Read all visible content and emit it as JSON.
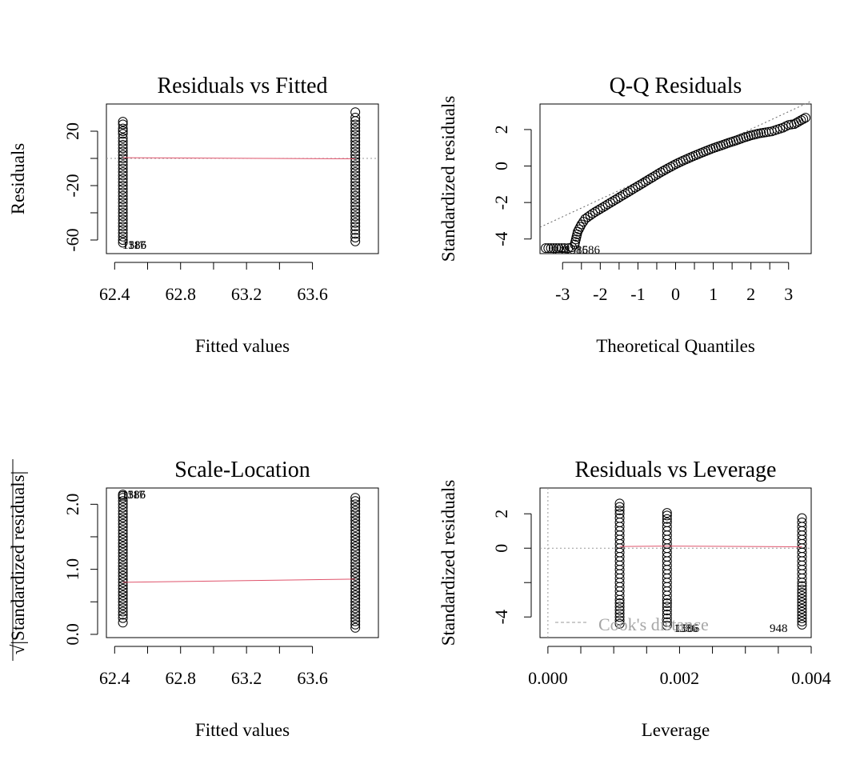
{
  "chart_data": [
    {
      "type": "scatter",
      "title": "Residuals vs Fitted",
      "xlabel": "Fitted values",
      "ylabel": "Residuals",
      "xlim": [
        62.35,
        64.0
      ],
      "ylim": [
        -70,
        40
      ],
      "xticks": [
        "62.4",
        "62.8",
        "63.2",
        "63.6"
      ],
      "xtick_values": [
        62.4,
        62.8,
        63.2,
        63.6
      ],
      "yticks": [
        "-60",
        "-20",
        "20"
      ],
      "ytick_values": [
        -60,
        -20,
        20
      ],
      "y_minor_ticks": [
        -40,
        0
      ],
      "groups": [
        {
          "x": 62.45,
          "y_values": [
            -62,
            -60,
            -45,
            -40,
            -35,
            -30,
            -25,
            -20,
            -15,
            -10,
            -5,
            0,
            5,
            10,
            15,
            18,
            20,
            22,
            25,
            27
          ]
        },
        {
          "x": 63.86,
          "y_values": [
            -61,
            -50,
            -40,
            -35,
            -30,
            -25,
            -20,
            -15,
            -10,
            -5,
            0,
            5,
            10,
            15,
            20,
            25,
            30,
            34
          ]
        }
      ],
      "smoother": [
        {
          "x": 62.45,
          "y": 0.5
        },
        {
          "x": 63.86,
          "y": -0.3
        }
      ],
      "reference_line_y": 0,
      "point_labels": [
        "1386",
        "1117",
        "1586"
      ]
    },
    {
      "type": "scatter",
      "title": "Q-Q Residuals",
      "xlabel": "Theoretical Quantiles",
      "ylabel": "Standardized residuals",
      "xlim": [
        -3.6,
        3.6
      ],
      "ylim": [
        -4.8,
        3.4
      ],
      "xticks": [
        "-3",
        "-2",
        "-1",
        "0",
        "1",
        "2",
        "3"
      ],
      "xtick_values": [
        -3,
        -2,
        -1,
        0,
        1,
        2,
        3
      ],
      "yticks": [
        "-4",
        "-2",
        "0",
        "2"
      ],
      "ytick_values": [
        -4,
        -2,
        0,
        2
      ],
      "points": [
        [
          -3.45,
          -4.5
        ],
        [
          -3.1,
          -4.5
        ],
        [
          -2.95,
          -4.5
        ],
        [
          -2.85,
          -4.5
        ],
        [
          -2.75,
          -4.45
        ],
        [
          -2.68,
          -4.3
        ],
        [
          -2.6,
          -3.6
        ],
        [
          -2.5,
          -3.2
        ],
        [
          -2.4,
          -2.9
        ],
        [
          -2.2,
          -2.6
        ],
        [
          -2.0,
          -2.35
        ],
        [
          -1.8,
          -2.1
        ],
        [
          -1.6,
          -1.85
        ],
        [
          -1.4,
          -1.6
        ],
        [
          -1.2,
          -1.35
        ],
        [
          -1.0,
          -1.1
        ],
        [
          -0.8,
          -0.85
        ],
        [
          -0.6,
          -0.6
        ],
        [
          -0.4,
          -0.35
        ],
        [
          -0.2,
          -0.12
        ],
        [
          0.0,
          0.1
        ],
        [
          0.2,
          0.3
        ],
        [
          0.4,
          0.48
        ],
        [
          0.6,
          0.65
        ],
        [
          0.8,
          0.82
        ],
        [
          1.0,
          0.98
        ],
        [
          1.2,
          1.12
        ],
        [
          1.4,
          1.27
        ],
        [
          1.6,
          1.4
        ],
        [
          1.8,
          1.55
        ],
        [
          2.0,
          1.68
        ],
        [
          2.2,
          1.78
        ],
        [
          2.4,
          1.85
        ],
        [
          2.55,
          1.9
        ],
        [
          2.7,
          2.0
        ],
        [
          2.85,
          2.1
        ],
        [
          3.0,
          2.25
        ],
        [
          3.15,
          2.3
        ],
        [
          3.45,
          2.65
        ]
      ],
      "reference_line": {
        "slope": 0.96,
        "intercept": 0.1
      },
      "point_labels": [
        "948",
        "1386",
        "1586"
      ]
    },
    {
      "type": "scatter",
      "title": "Scale-Location",
      "xlabel": "Fitted values",
      "ylabel": "√|Standardized residuals|",
      "xlim": [
        62.35,
        64.0
      ],
      "ylim": [
        -0.05,
        2.25
      ],
      "xticks": [
        "62.4",
        "62.8",
        "63.2",
        "63.6"
      ],
      "xtick_values": [
        62.4,
        62.8,
        63.2,
        63.6
      ],
      "yticks": [
        "0.0",
        "1.0",
        "2.0"
      ],
      "ytick_values": [
        0.0,
        1.0,
        2.0
      ],
      "y_minor_ticks": [
        0.5,
        1.5
      ],
      "groups": [
        {
          "x": 62.45,
          "y_values": [
            0.18,
            0.25,
            0.35,
            0.45,
            0.55,
            0.65,
            0.75,
            0.85,
            0.95,
            1.05,
            1.15,
            1.25,
            1.35,
            1.45,
            1.55,
            1.65,
            1.75,
            1.85,
            2.1,
            2.13,
            2.15
          ]
        },
        {
          "x": 63.86,
          "y_values": [
            0.1,
            0.25,
            0.35,
            0.45,
            0.55,
            0.65,
            0.75,
            0.85,
            0.95,
            1.05,
            1.15,
            1.25,
            1.35,
            1.45,
            1.55,
            1.65,
            1.75,
            1.85,
            1.95,
            2.1
          ]
        }
      ],
      "smoother": [
        {
          "x": 62.45,
          "y": 0.8
        },
        {
          "x": 63.86,
          "y": 0.85
        }
      ],
      "point_labels": [
        "1386",
        "1117",
        "1586"
      ]
    },
    {
      "type": "scatter",
      "title": "Residuals vs Leverage",
      "xlabel": "Leverage",
      "ylabel": "Standardized residuals",
      "xlim": [
        -0.00012,
        0.004
      ],
      "ylim": [
        -5.2,
        3.5
      ],
      "xticks": [
        "0.000",
        "0.002",
        "0.004"
      ],
      "xtick_values": [
        0.0,
        0.002,
        0.004
      ],
      "x_minor_ticks": [
        0.0005,
        0.001,
        0.0015,
        0.0025,
        0.003,
        0.0035
      ],
      "yticks": [
        "-4",
        "0",
        "2"
      ],
      "ytick_values": [
        -4,
        0,
        2
      ],
      "y_minor_ticks": [
        -2
      ],
      "groups": [
        {
          "x": 0.00109,
          "y_values": [
            -4.4,
            -3.8,
            -3.0,
            -2.5,
            -2.0,
            -1.5,
            -1.0,
            -0.5,
            0.0,
            0.5,
            1.0,
            1.5,
            2.0,
            2.6
          ]
        },
        {
          "x": 0.00181,
          "y_values": [
            -4.5,
            -4.3,
            -3.4,
            -3.0,
            -2.5,
            -2.0,
            -1.5,
            -1.0,
            -0.5,
            0.0,
            0.5,
            1.0,
            1.5,
            1.9,
            2.05
          ]
        },
        {
          "x": 0.00386,
          "y_values": [
            -4.45,
            -2.4,
            -2.0,
            -1.5,
            -1.0,
            -0.5,
            0.0,
            0.5,
            1.0,
            1.5,
            1.75
          ]
        }
      ],
      "smoother": [
        {
          "x": 0.00109,
          "y": 0.1
        },
        {
          "x": 0.00181,
          "y": 0.12
        },
        {
          "x": 0.00386,
          "y": 0.08
        }
      ],
      "reference_line_y": 0,
      "point_labels": [
        "1386",
        "1586",
        "948"
      ],
      "legend": {
        "label": "Cook's distance",
        "position": "bottom-left"
      }
    }
  ]
}
